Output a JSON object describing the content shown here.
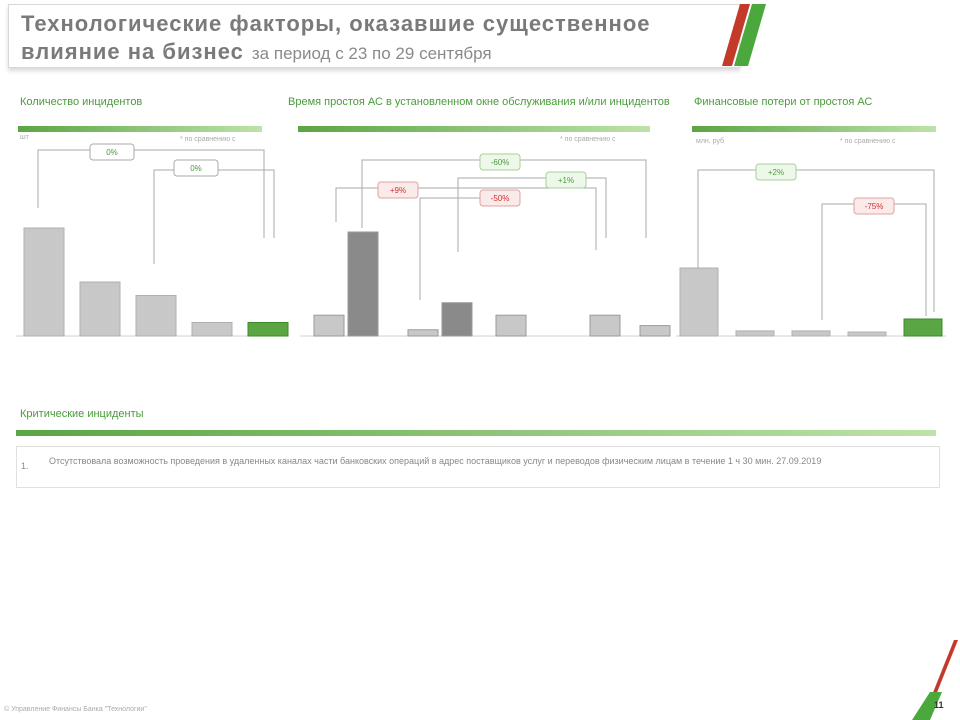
{
  "header": {
    "title_line1": "Технологические факторы, оказавшие существенное",
    "title_line2": "влияние на бизнес",
    "period": "за период с 23 по 29 сентября"
  },
  "colors": {
    "accent_green": "#5aa544",
    "accent_red": "#e03030",
    "bar_gray": "#c8c8c8",
    "bar_dark": "#8a8a8a"
  },
  "charts": {
    "incidents": {
      "title": "Количество инцидентов",
      "unit": "шт",
      "note": "* по сравнению с",
      "deltas": [
        "0%",
        "0%"
      ]
    },
    "downtime": {
      "title": "Время простоя АС в установленном окне обслуживания и/или инцидентов",
      "note": "* по сравнению с",
      "deltas": [
        "+9%",
        "-50%",
        "-60%",
        "+1%"
      ]
    },
    "losses": {
      "title": "Финансовые потери от простоя АС",
      "unit": "млн. руб",
      "note": "* по сравнению с",
      "deltas": [
        "+2%",
        "-75%"
      ]
    }
  },
  "chart_data": [
    {
      "type": "bar",
      "title": "Количество инцидентов",
      "categories": [
        "",
        "",
        "",
        "",
        ""
      ],
      "values": [
        8,
        4,
        3,
        1,
        1
      ]
    },
    {
      "type": "bar",
      "title": "Время простоя АС в установленном окне обслуживания и/или инцидентов",
      "categories": [
        "",
        "",
        "",
        "",
        ""
      ],
      "series": [
        {
          "name": "",
          "values": [
            1,
            0.3,
            1,
            1,
            0.5
          ]
        },
        {
          "name": "",
          "values": [
            5,
            1.6,
            0,
            0,
            0
          ]
        }
      ]
    },
    {
      "type": "bar",
      "title": "Финансовые потери от простоя АС",
      "categories": [
        "",
        "",
        "",
        "",
        ""
      ],
      "values": [
        20,
        1.5,
        1.5,
        1,
        5
      ]
    }
  ],
  "critical": {
    "title": "Критические инциденты",
    "items": [
      {
        "num": "1.",
        "text": "Отсутствовала возможность проведения в удаленных каналах части банковских операций в адрес поставщиков услуг и переводов физическим лицам в течение 1 ч 30 мин. 27.09.2019"
      }
    ]
  },
  "footer": {
    "copyright": "© Управление Финансы Банка \"Технологии\"",
    "page": "11"
  }
}
